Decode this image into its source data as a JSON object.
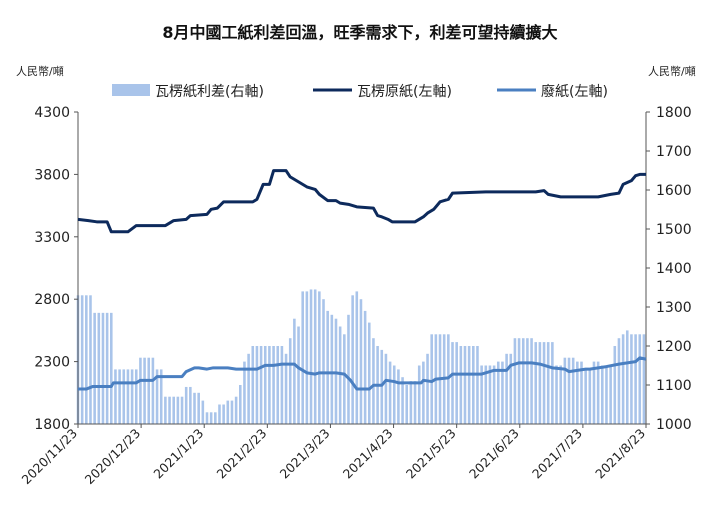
{
  "chart_data": {
    "type": "bar+line",
    "title": "8月中國工紙利差回溫，旺季需求下，利差可望持續擴大",
    "left_unit": "人民幣/噸",
    "right_unit": "人民幣/噸",
    "left_axis": {
      "ylim": [
        1800,
        4300
      ],
      "ticks": [
        "1800",
        "2300",
        "2800",
        "3300",
        "3800",
        "4300"
      ]
    },
    "right_axis": {
      "ylim": [
        1000,
        1800
      ],
      "ticks": [
        "1000",
        "1100",
        "1200",
        "1300",
        "1400",
        "1500",
        "1600",
        "1700",
        "1800"
      ]
    },
    "x_labels": [
      "2020/11/23",
      "2020/12/23",
      "2021/1/23",
      "2021/2/23",
      "2021/3/23",
      "2021/4/23",
      "2021/5/23",
      "2021/6/23",
      "2021/7/23",
      "2021/8/23"
    ],
    "x_range_days": [
      0,
      273
    ],
    "grid": false,
    "legend_position": "top",
    "series": [
      {
        "name": "瓦楞紙利差(右軸)",
        "type": "bar",
        "axis": "right",
        "color": "#a9c4ea",
        "x": [
          0,
          2,
          4,
          6,
          8,
          10,
          12,
          14,
          16,
          18,
          20,
          22,
          24,
          26,
          28,
          30,
          32,
          34,
          36,
          38,
          40,
          42,
          44,
          46,
          48,
          50,
          52,
          54,
          56,
          58,
          60,
          62,
          64,
          66,
          68,
          70,
          72,
          74,
          76,
          78,
          80,
          82,
          84,
          86,
          88,
          90,
          92,
          94,
          96,
          98,
          100,
          102,
          104,
          106,
          108,
          110,
          112,
          114,
          116,
          118,
          120,
          122,
          124,
          126,
          128,
          130,
          132,
          134,
          136,
          138,
          140,
          142,
          144,
          146,
          148,
          150,
          152,
          154,
          156,
          158,
          160,
          162,
          164,
          166,
          168,
          170,
          172,
          174,
          176,
          178,
          180,
          182,
          184,
          186,
          188,
          190,
          192,
          194,
          196,
          198,
          200,
          202,
          204,
          206,
          208,
          210,
          212,
          214,
          216,
          218,
          220,
          222,
          224,
          226,
          228,
          230,
          232,
          234,
          236,
          238,
          240,
          242,
          244,
          246,
          248,
          250,
          252,
          254,
          256,
          258,
          260,
          262,
          264,
          266,
          268,
          270,
          272
        ],
        "values": [
          1330,
          1330,
          1330,
          1330,
          1285,
          1285,
          1285,
          1285,
          1285,
          1140,
          1140,
          1140,
          1140,
          1140,
          1140,
          1170,
          1170,
          1170,
          1170,
          1140,
          1140,
          1070,
          1070,
          1070,
          1070,
          1070,
          1095,
          1095,
          1080,
          1080,
          1060,
          1030,
          1030,
          1030,
          1050,
          1050,
          1060,
          1060,
          1070,
          1100,
          1160,
          1180,
          1200,
          1200,
          1200,
          1200,
          1200,
          1200,
          1200,
          1200,
          1180,
          1220,
          1270,
          1250,
          1340,
          1340,
          1345,
          1345,
          1340,
          1320,
          1290,
          1280,
          1270,
          1250,
          1230,
          1280,
          1330,
          1340,
          1320,
          1290,
          1260,
          1220,
          1200,
          1190,
          1180,
          1160,
          1150,
          1140,
          1120,
          1100,
          1110,
          1110,
          1150,
          1160,
          1180,
          1230,
          1230,
          1230,
          1230,
          1230,
          1210,
          1210,
          1200,
          1200,
          1200,
          1200,
          1200,
          1150,
          1150,
          1150,
          1150,
          1160,
          1160,
          1180,
          1180,
          1220,
          1220,
          1220,
          1220,
          1220,
          1210,
          1210,
          1210,
          1210,
          1210,
          1150,
          1150,
          1170,
          1170,
          1170,
          1160,
          1160,
          1140,
          1140,
          1160,
          1160,
          1150,
          1150,
          1150,
          1200,
          1220,
          1230,
          1240,
          1230,
          1230,
          1230,
          1230
        ]
      },
      {
        "name": "瓦楞原紙(左軸)",
        "type": "line",
        "axis": "left",
        "color": "#0d2a5c",
        "points": [
          [
            0,
            3440
          ],
          [
            5,
            3430
          ],
          [
            9,
            3420
          ],
          [
            14,
            3420
          ],
          [
            16,
            3340
          ],
          [
            24,
            3340
          ],
          [
            28,
            3390
          ],
          [
            42,
            3390
          ],
          [
            44,
            3410
          ],
          [
            46,
            3430
          ],
          [
            52,
            3440
          ],
          [
            54,
            3470
          ],
          [
            62,
            3480
          ],
          [
            64,
            3520
          ],
          [
            67,
            3530
          ],
          [
            70,
            3580
          ],
          [
            84,
            3580
          ],
          [
            86,
            3600
          ],
          [
            89,
            3720
          ],
          [
            92,
            3720
          ],
          [
            94,
            3830
          ],
          [
            100,
            3830
          ],
          [
            102,
            3780
          ],
          [
            106,
            3740
          ],
          [
            110,
            3700
          ],
          [
            114,
            3680
          ],
          [
            116,
            3640
          ],
          [
            120,
            3590
          ],
          [
            124,
            3590
          ],
          [
            126,
            3570
          ],
          [
            130,
            3560
          ],
          [
            134,
            3540
          ],
          [
            142,
            3530
          ],
          [
            144,
            3470
          ],
          [
            146,
            3460
          ],
          [
            149,
            3440
          ],
          [
            151,
            3420
          ],
          [
            162,
            3420
          ],
          [
            163,
            3430
          ],
          [
            166,
            3460
          ],
          [
            168,
            3490
          ],
          [
            171,
            3520
          ],
          [
            174,
            3580
          ],
          [
            178,
            3600
          ],
          [
            180,
            3650
          ],
          [
            196,
            3660
          ],
          [
            200,
            3660
          ],
          [
            220,
            3660
          ],
          [
            224,
            3670
          ],
          [
            226,
            3640
          ],
          [
            232,
            3620
          ],
          [
            244,
            3620
          ],
          [
            250,
            3620
          ],
          [
            256,
            3640
          ],
          [
            260,
            3650
          ],
          [
            262,
            3720
          ],
          [
            266,
            3750
          ],
          [
            268,
            3790
          ],
          [
            270,
            3800
          ],
          [
            273,
            3800
          ]
        ]
      },
      {
        "name": "廢紙(左軸)",
        "type": "line",
        "axis": "left",
        "color": "#4a7fc1",
        "points": [
          [
            0,
            2080
          ],
          [
            4,
            2080
          ],
          [
            7,
            2100
          ],
          [
            16,
            2100
          ],
          [
            17,
            2130
          ],
          [
            28,
            2130
          ],
          [
            30,
            2150
          ],
          [
            36,
            2150
          ],
          [
            38,
            2180
          ],
          [
            50,
            2180
          ],
          [
            52,
            2220
          ],
          [
            56,
            2250
          ],
          [
            58,
            2250
          ],
          [
            62,
            2240
          ],
          [
            65,
            2250
          ],
          [
            72,
            2250
          ],
          [
            76,
            2240
          ],
          [
            86,
            2240
          ],
          [
            90,
            2270
          ],
          [
            94,
            2270
          ],
          [
            98,
            2280
          ],
          [
            104,
            2280
          ],
          [
            106,
            2250
          ],
          [
            110,
            2210
          ],
          [
            114,
            2200
          ],
          [
            116,
            2210
          ],
          [
            124,
            2210
          ],
          [
            128,
            2200
          ],
          [
            131,
            2150
          ],
          [
            134,
            2080
          ],
          [
            140,
            2080
          ],
          [
            142,
            2110
          ],
          [
            146,
            2110
          ],
          [
            148,
            2150
          ],
          [
            152,
            2140
          ],
          [
            154,
            2130
          ],
          [
            165,
            2130
          ],
          [
            166,
            2150
          ],
          [
            170,
            2140
          ],
          [
            172,
            2160
          ],
          [
            178,
            2170
          ],
          [
            180,
            2200
          ],
          [
            186,
            2200
          ],
          [
            194,
            2200
          ],
          [
            196,
            2210
          ],
          [
            200,
            2230
          ],
          [
            206,
            2230
          ],
          [
            208,
            2270
          ],
          [
            212,
            2290
          ],
          [
            218,
            2290
          ],
          [
            222,
            2280
          ],
          [
            228,
            2250
          ],
          [
            234,
            2240
          ],
          [
            236,
            2220
          ],
          [
            240,
            2230
          ],
          [
            244,
            2240
          ],
          [
            246,
            2240
          ],
          [
            254,
            2260
          ],
          [
            260,
            2280
          ],
          [
            264,
            2290
          ],
          [
            268,
            2300
          ],
          [
            270,
            2330
          ],
          [
            273,
            2320
          ]
        ]
      }
    ]
  }
}
